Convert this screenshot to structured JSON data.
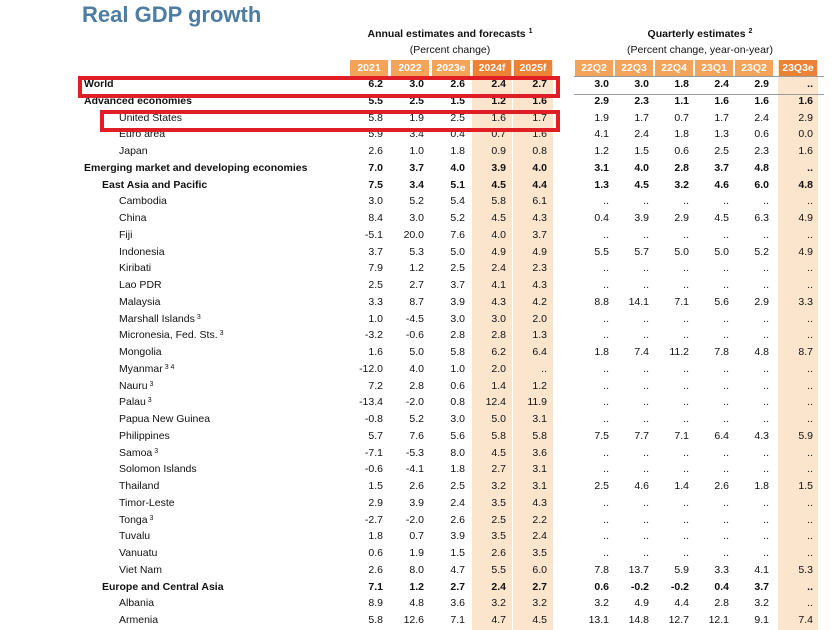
{
  "title": "Real GDP growth",
  "annual_header": {
    "title": "Annual estimates and forecasts",
    "note": "1",
    "unit": "(Percent change)"
  },
  "quarterly_header": {
    "title": "Quarterly estimates",
    "note": "2",
    "unit": "(Percent change, year-on-year)"
  },
  "annual_columns": [
    "2021",
    "2022",
    "2023e",
    "2024f",
    "2025f"
  ],
  "quarterly_columns": [
    "22Q2",
    "22Q3",
    "22Q4",
    "23Q1",
    "23Q2",
    "23Q3e"
  ],
  "accent_colors": {
    "header": "#f4a35b",
    "header_dark": "#ec8236",
    "shade": "#fce5cd",
    "highlight": "#e01e26",
    "title": "#4e7ca3"
  },
  "rows": [
    {
      "name": "World",
      "note": "",
      "level": 0,
      "bold": true,
      "annual": [
        "6.2",
        "3.0",
        "2.6",
        "2.4",
        "2.7"
      ],
      "quarterly": [
        "3.0",
        "3.0",
        "1.8",
        "2.4",
        "2.9",
        ".."
      ]
    },
    {
      "name": "Advanced economies",
      "note": "",
      "level": 0,
      "bold": true,
      "annual": [
        "5.5",
        "2.5",
        "1.5",
        "1.2",
        "1.6"
      ],
      "quarterly": [
        "2.9",
        "2.3",
        "1.1",
        "1.6",
        "1.6",
        "1.6"
      ]
    },
    {
      "name": "United States",
      "note": "",
      "level": 2,
      "bold": false,
      "annual": [
        "5.8",
        "1.9",
        "2.5",
        "1.6",
        "1.7"
      ],
      "quarterly": [
        "1.9",
        "1.7",
        "0.7",
        "1.7",
        "2.4",
        "2.9"
      ]
    },
    {
      "name": "Euro area",
      "note": "",
      "level": 2,
      "bold": false,
      "annual": [
        "5.9",
        "3.4",
        "0.4",
        "0.7",
        "1.6"
      ],
      "quarterly": [
        "4.1",
        "2.4",
        "1.8",
        "1.3",
        "0.6",
        "0.0"
      ]
    },
    {
      "name": "Japan",
      "note": "",
      "level": 2,
      "bold": false,
      "annual": [
        "2.6",
        "1.0",
        "1.8",
        "0.9",
        "0.8"
      ],
      "quarterly": [
        "1.2",
        "1.5",
        "0.6",
        "2.5",
        "2.3",
        "1.6"
      ]
    },
    {
      "name": "Emerging market and developing economies",
      "note": "",
      "level": 0,
      "bold": true,
      "annual": [
        "7.0",
        "3.7",
        "4.0",
        "3.9",
        "4.0"
      ],
      "quarterly": [
        "3.1",
        "4.0",
        "2.8",
        "3.7",
        "4.8",
        ".."
      ]
    },
    {
      "name": "East Asia and Pacific",
      "note": "",
      "level": 1,
      "bold": true,
      "annual": [
        "7.5",
        "3.4",
        "5.1",
        "4.5",
        "4.4"
      ],
      "quarterly": [
        "1.3",
        "4.5",
        "3.2",
        "4.6",
        "6.0",
        "4.8"
      ]
    },
    {
      "name": "Cambodia",
      "note": "",
      "level": 2,
      "bold": false,
      "annual": [
        "3.0",
        "5.2",
        "5.4",
        "5.8",
        "6.1"
      ],
      "quarterly": [
        "..",
        "..",
        "..",
        "..",
        "..",
        ".."
      ]
    },
    {
      "name": "China",
      "note": "",
      "level": 2,
      "bold": false,
      "annual": [
        "8.4",
        "3.0",
        "5.2",
        "4.5",
        "4.3"
      ],
      "quarterly": [
        "0.4",
        "3.9",
        "2.9",
        "4.5",
        "6.3",
        "4.9"
      ]
    },
    {
      "name": "Fiji",
      "note": "",
      "level": 2,
      "bold": false,
      "annual": [
        "-5.1",
        "20.0",
        "7.6",
        "4.0",
        "3.7"
      ],
      "quarterly": [
        "..",
        "..",
        "..",
        "..",
        "..",
        ".."
      ]
    },
    {
      "name": "Indonesia",
      "note": "",
      "level": 2,
      "bold": false,
      "annual": [
        "3.7",
        "5.3",
        "5.0",
        "4.9",
        "4.9"
      ],
      "quarterly": [
        "5.5",
        "5.7",
        "5.0",
        "5.0",
        "5.2",
        "4.9"
      ]
    },
    {
      "name": "Kiribati",
      "note": "",
      "level": 2,
      "bold": false,
      "annual": [
        "7.9",
        "1.2",
        "2.5",
        "2.4",
        "2.3"
      ],
      "quarterly": [
        "..",
        "..",
        "..",
        "..",
        "..",
        ".."
      ]
    },
    {
      "name": "Lao PDR",
      "note": "",
      "level": 2,
      "bold": false,
      "annual": [
        "2.5",
        "2.7",
        "3.7",
        "4.1",
        "4.3"
      ],
      "quarterly": [
        "..",
        "..",
        "..",
        "..",
        "..",
        ".."
      ]
    },
    {
      "name": "Malaysia",
      "note": "",
      "level": 2,
      "bold": false,
      "annual": [
        "3.3",
        "8.7",
        "3.9",
        "4.3",
        "4.2"
      ],
      "quarterly": [
        "8.8",
        "14.1",
        "7.1",
        "5.6",
        "2.9",
        "3.3"
      ]
    },
    {
      "name": "Marshall Islands",
      "note": "3",
      "level": 2,
      "bold": false,
      "annual": [
        "1.0",
        "-4.5",
        "3.0",
        "3.0",
        "2.0"
      ],
      "quarterly": [
        "..",
        "..",
        "..",
        "..",
        "..",
        ".."
      ]
    },
    {
      "name": "Micronesia, Fed. Sts.",
      "note": "3",
      "level": 2,
      "bold": false,
      "annual": [
        "-3.2",
        "-0.6",
        "2.8",
        "2.8",
        "1.3"
      ],
      "quarterly": [
        "..",
        "..",
        "..",
        "..",
        "..",
        ".."
      ]
    },
    {
      "name": "Mongolia",
      "note": "",
      "level": 2,
      "bold": false,
      "annual": [
        "1.6",
        "5.0",
        "5.8",
        "6.2",
        "6.4"
      ],
      "quarterly": [
        "1.8",
        "7.4",
        "11.2",
        "7.8",
        "4.8",
        "8.7"
      ]
    },
    {
      "name": "Myanmar",
      "note": "3 4",
      "level": 2,
      "bold": false,
      "annual": [
        "-12.0",
        "4.0",
        "1.0",
        "2.0",
        ".."
      ],
      "quarterly": [
        "..",
        "..",
        "..",
        "..",
        "..",
        ".."
      ]
    },
    {
      "name": "Nauru",
      "note": "3",
      "level": 2,
      "bold": false,
      "annual": [
        "7.2",
        "2.8",
        "0.6",
        "1.4",
        "1.2"
      ],
      "quarterly": [
        "..",
        "..",
        "..",
        "..",
        "..",
        ".."
      ]
    },
    {
      "name": "Palau",
      "note": "3",
      "level": 2,
      "bold": false,
      "annual": [
        "-13.4",
        "-2.0",
        "0.8",
        "12.4",
        "11.9"
      ],
      "quarterly": [
        "..",
        "..",
        "..",
        "..",
        "..",
        ".."
      ]
    },
    {
      "name": "Papua New Guinea",
      "note": "",
      "level": 2,
      "bold": false,
      "annual": [
        "-0.8",
        "5.2",
        "3.0",
        "5.0",
        "3.1"
      ],
      "quarterly": [
        "..",
        "..",
        "..",
        "..",
        "..",
        ".."
      ]
    },
    {
      "name": "Philippines",
      "note": "",
      "level": 2,
      "bold": false,
      "annual": [
        "5.7",
        "7.6",
        "5.6",
        "5.8",
        "5.8"
      ],
      "quarterly": [
        "7.5",
        "7.7",
        "7.1",
        "6.4",
        "4.3",
        "5.9"
      ]
    },
    {
      "name": "Samoa",
      "note": "3",
      "level": 2,
      "bold": false,
      "annual": [
        "-7.1",
        "-5.3",
        "8.0",
        "4.5",
        "3.6"
      ],
      "quarterly": [
        "..",
        "..",
        "..",
        "..",
        "..",
        ".."
      ]
    },
    {
      "name": "Solomon Islands",
      "note": "",
      "level": 2,
      "bold": false,
      "annual": [
        "-0.6",
        "-4.1",
        "1.8",
        "2.7",
        "3.1"
      ],
      "quarterly": [
        "..",
        "..",
        "..",
        "..",
        "..",
        ".."
      ]
    },
    {
      "name": "Thailand",
      "note": "",
      "level": 2,
      "bold": false,
      "annual": [
        "1.5",
        "2.6",
        "2.5",
        "3.2",
        "3.1"
      ],
      "quarterly": [
        "2.5",
        "4.6",
        "1.4",
        "2.6",
        "1.8",
        "1.5"
      ]
    },
    {
      "name": "Timor-Leste",
      "note": "",
      "level": 2,
      "bold": false,
      "annual": [
        "2.9",
        "3.9",
        "2.4",
        "3.5",
        "4.3"
      ],
      "quarterly": [
        "..",
        "..",
        "..",
        "..",
        "..",
        ".."
      ]
    },
    {
      "name": "Tonga",
      "note": "3",
      "level": 2,
      "bold": false,
      "annual": [
        "-2.7",
        "-2.0",
        "2.6",
        "2.5",
        "2.2"
      ],
      "quarterly": [
        "..",
        "..",
        "..",
        "..",
        "..",
        ".."
      ]
    },
    {
      "name": "Tuvalu",
      "note": "",
      "level": 2,
      "bold": false,
      "annual": [
        "1.8",
        "0.7",
        "3.9",
        "3.5",
        "2.4"
      ],
      "quarterly": [
        "..",
        "..",
        "..",
        "..",
        "..",
        ".."
      ]
    },
    {
      "name": "Vanuatu",
      "note": "",
      "level": 2,
      "bold": false,
      "annual": [
        "0.6",
        "1.9",
        "1.5",
        "2.6",
        "3.5"
      ],
      "quarterly": [
        "..",
        "..",
        "..",
        "..",
        "..",
        ".."
      ]
    },
    {
      "name": "Viet Nam",
      "note": "",
      "level": 2,
      "bold": false,
      "annual": [
        "2.6",
        "8.0",
        "4.7",
        "5.5",
        "6.0"
      ],
      "quarterly": [
        "7.8",
        "13.7",
        "5.9",
        "3.3",
        "4.1",
        "5.3"
      ]
    },
    {
      "name": "Europe and Central Asia",
      "note": "",
      "level": 1,
      "bold": true,
      "annual": [
        "7.1",
        "1.2",
        "2.7",
        "2.4",
        "2.7"
      ],
      "quarterly": [
        "0.6",
        "-0.2",
        "-0.2",
        "0.4",
        "3.7",
        ".."
      ]
    },
    {
      "name": "Albania",
      "note": "",
      "level": 2,
      "bold": false,
      "annual": [
        "8.9",
        "4.8",
        "3.6",
        "3.2",
        "3.2"
      ],
      "quarterly": [
        "3.2",
        "4.9",
        "4.4",
        "2.8",
        "3.2",
        ".."
      ]
    },
    {
      "name": "Armenia",
      "note": "",
      "level": 2,
      "bold": false,
      "annual": [
        "5.8",
        "12.6",
        "7.1",
        "4.7",
        "4.5"
      ],
      "quarterly": [
        "13.1",
        "14.8",
        "12.7",
        "12.1",
        "9.1",
        "7.4"
      ]
    }
  ]
}
